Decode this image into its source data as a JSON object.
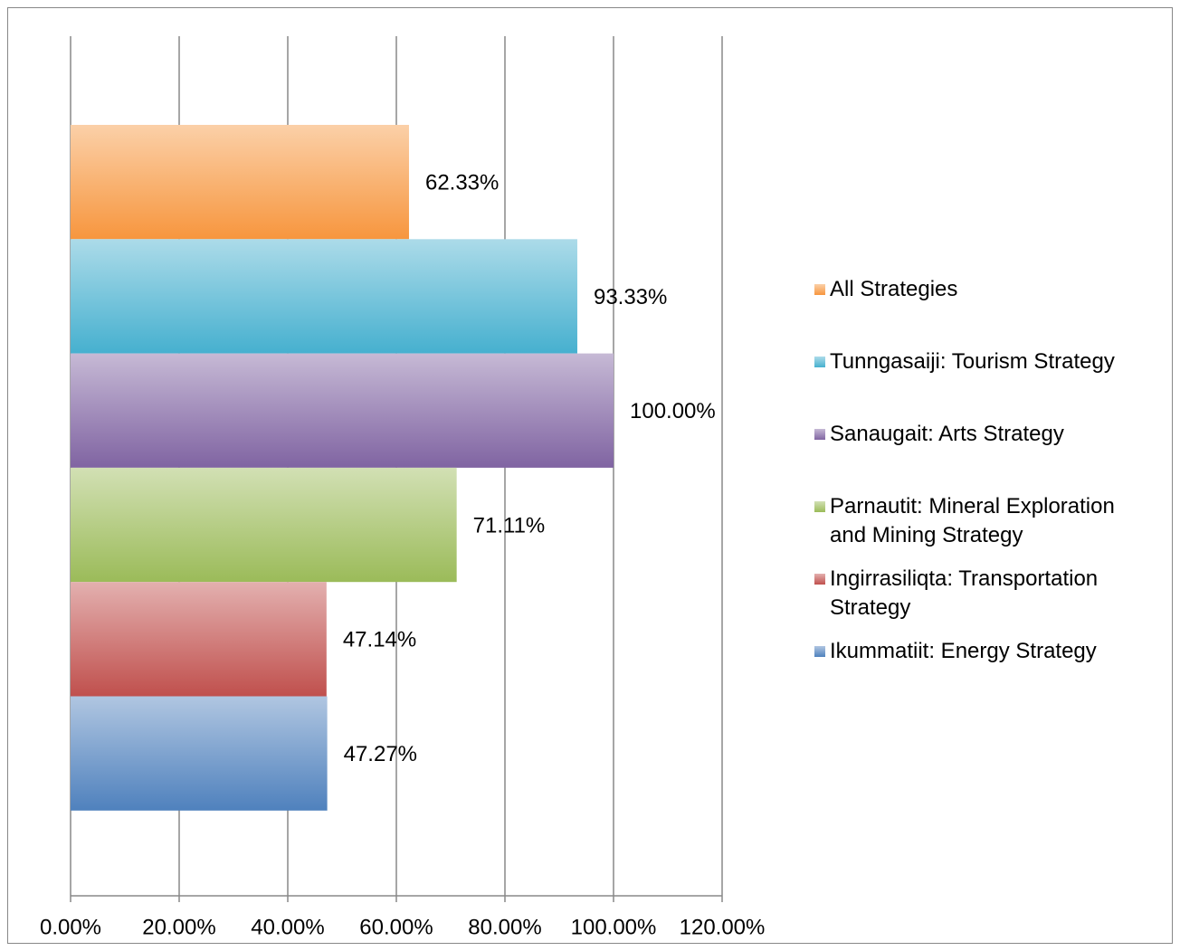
{
  "chart_data": {
    "type": "bar",
    "orientation": "horizontal",
    "categories": [
      null
    ],
    "series": [
      {
        "name": "All Strategies",
        "color": "#f7963e",
        "values": [
          62.33
        ],
        "value_labels": [
          "62.33%"
        ]
      },
      {
        "name": "Tunngasaiji: Tourism Strategy",
        "color": "#46b0cf",
        "values": [
          93.33
        ],
        "value_labels": [
          "93.33%"
        ]
      },
      {
        "name": "Sanaugait: Arts Strategy",
        "color": "#8064a2",
        "values": [
          100.0
        ],
        "value_labels": [
          "100.00%"
        ]
      },
      {
        "name": "Parnautit: Mineral Exploration and Mining Strategy",
        "color": "#9bbb59",
        "values": [
          71.11
        ],
        "value_labels": [
          "71.11%"
        ]
      },
      {
        "name": "Ingirrasiliqta: Transportation Strategy",
        "color": "#c0504d",
        "values": [
          47.14
        ],
        "value_labels": [
          "47.14%"
        ]
      },
      {
        "name": "Ikummatiit: Energy Strategy",
        "color": "#4f81bd",
        "values": [
          47.27
        ],
        "value_labels": [
          "47.27%"
        ]
      }
    ],
    "xlim": [
      0,
      120
    ],
    "xticks": [
      {
        "value": 0,
        "label": "0.00%"
      },
      {
        "value": 20,
        "label": "20.00%"
      },
      {
        "value": 40,
        "label": "40.00%"
      },
      {
        "value": 60,
        "label": "60.00%"
      },
      {
        "value": 80,
        "label": "80.00%"
      },
      {
        "value": 100,
        "label": "100.00%"
      },
      {
        "value": 120,
        "label": "120.00%"
      }
    ],
    "grid": true,
    "legend": "right"
  }
}
